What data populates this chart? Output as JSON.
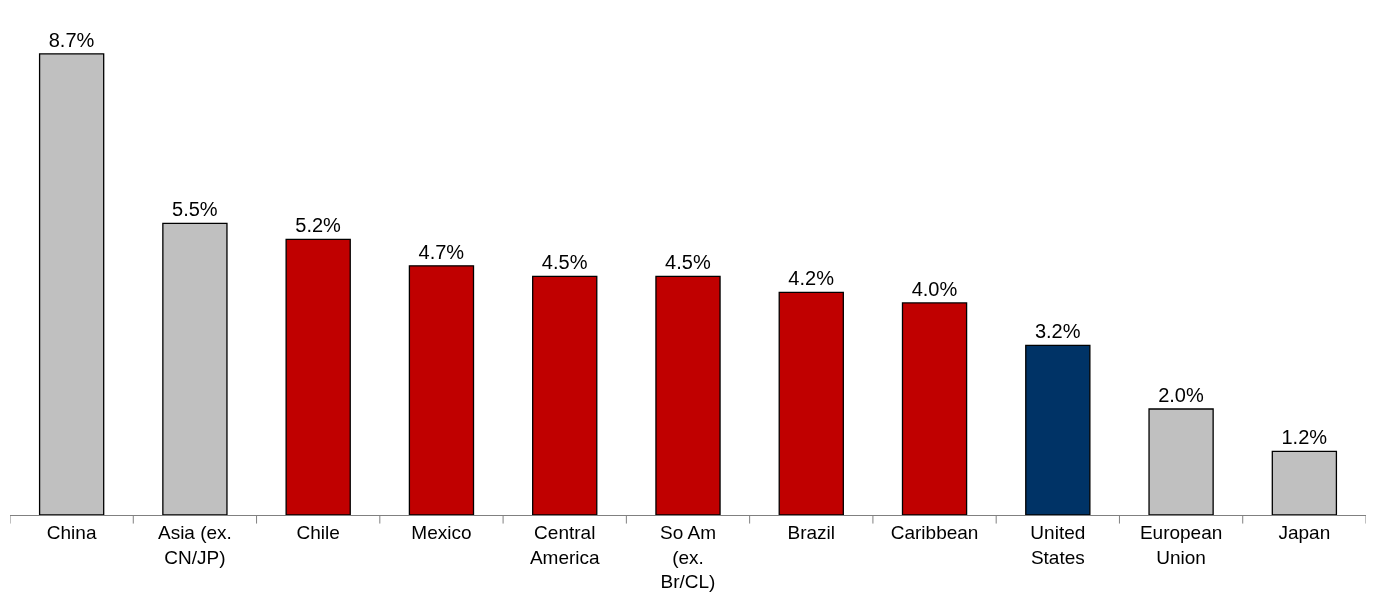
{
  "chart_data": {
    "type": "bar",
    "categories": [
      "China",
      "Asia (ex. CN/JP)",
      "Chile",
      "Mexico",
      "Central America",
      "So Am (ex. Br/CL)",
      "Brazil",
      "Caribbean",
      "United States",
      "European Union",
      "Japan"
    ],
    "values": [
      8.7,
      5.5,
      5.2,
      4.7,
      4.5,
      4.5,
      4.2,
      4.0,
      3.2,
      2.0,
      1.2
    ],
    "value_labels": [
      "8.7%",
      "5.5%",
      "5.2%",
      "4.7%",
      "4.5%",
      "4.5%",
      "4.2%",
      "4.0%",
      "3.2%",
      "2.0%",
      "1.2%"
    ],
    "colors": [
      "#c0c0c0",
      "#c0c0c0",
      "#c00000",
      "#c00000",
      "#c00000",
      "#c00000",
      "#c00000",
      "#c00000",
      "#003366",
      "#c0c0c0",
      "#c0c0c0"
    ],
    "tick_labels": "x"
  }
}
